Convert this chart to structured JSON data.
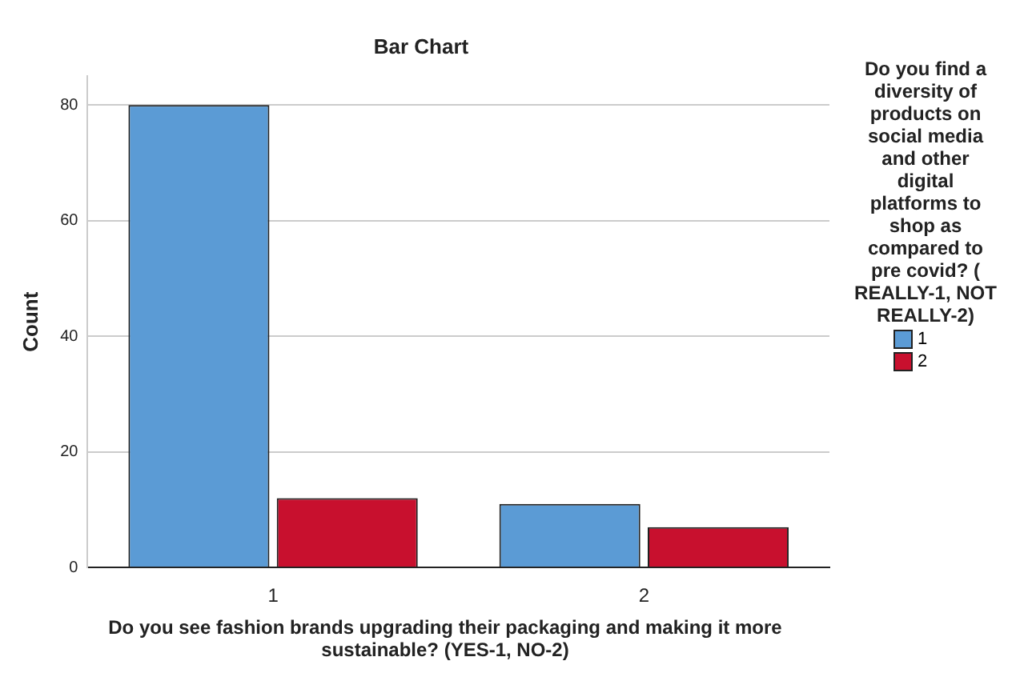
{
  "chart_data": {
    "type": "bar",
    "title": "Bar Chart",
    "xlabel": "Do you see fashion brands upgrading their packaging and making it more sustainable?  (YES-1, NO-2)",
    "ylabel": "Count",
    "legend_title": "Do you find a diversity of products on social media and other digital platforms to shop as compared to pre covid? ( REALLY-1, NOT REALLY-2)",
    "categories": [
      "1",
      "2"
    ],
    "series": [
      {
        "name": "1",
        "color": "#5b9bd5",
        "values": [
          80,
          11
        ]
      },
      {
        "name": "2",
        "color": "#c8102e",
        "values": [
          12,
          7
        ]
      }
    ],
    "ylim": [
      0,
      85
    ],
    "yticks": [
      0,
      20,
      40,
      60,
      80
    ],
    "grid": "y",
    "legend": "right"
  }
}
